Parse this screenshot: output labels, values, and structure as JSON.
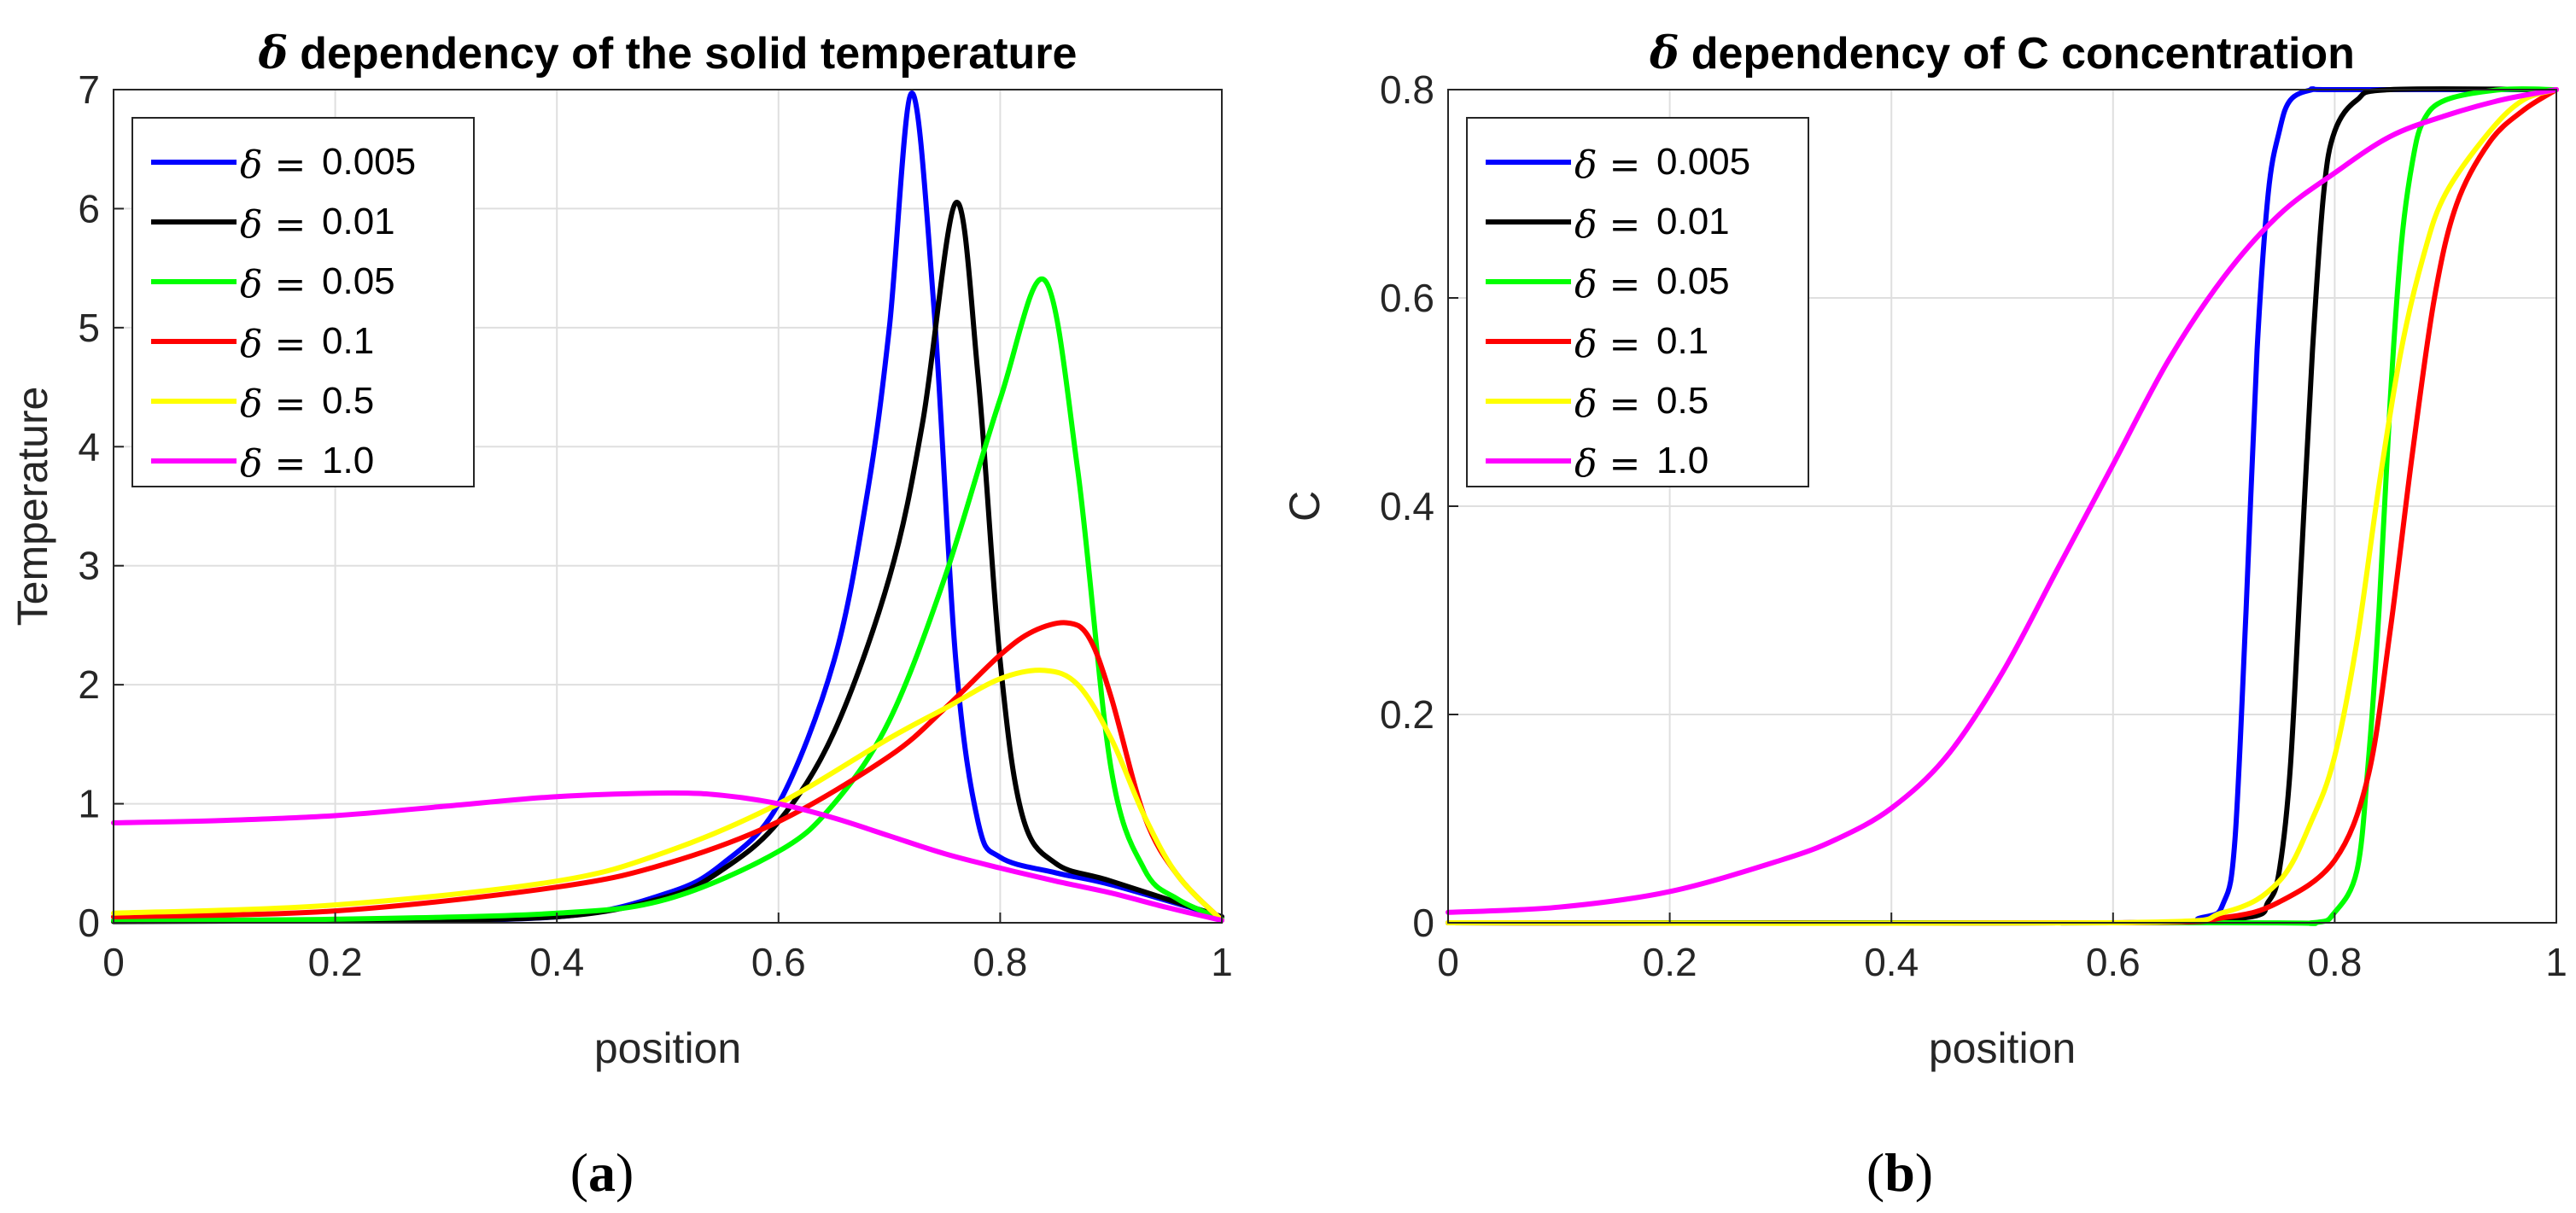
{
  "chart_data": [
    {
      "type": "line",
      "title": "dependency of the solid temperature",
      "title_symbol": "δ",
      "xlabel": "position",
      "ylabel": "Temperature",
      "xlim": [
        0,
        1
      ],
      "ylim": [
        0,
        7
      ],
      "xticks": [
        "0",
        "0.2",
        "0.4",
        "0.6",
        "0.8",
        "1"
      ],
      "yticks": [
        "0",
        "1",
        "2",
        "3",
        "4",
        "5",
        "6",
        "7"
      ],
      "grid": true,
      "legend_position": "top-left",
      "caption": "a",
      "series": [
        {
          "name": "0.005",
          "color": "#0000ff",
          "x": [
            0,
            0.2,
            0.4,
            0.5,
            0.55,
            0.6,
            0.65,
            0.68,
            0.7,
            0.72,
            0.74,
            0.76,
            0.78,
            0.8,
            0.85,
            0.9,
            1.0
          ],
          "y": [
            0.02,
            0.02,
            0.05,
            0.25,
            0.5,
            1.0,
            2.2,
            3.6,
            5.0,
            6.97,
            5.2,
            2.2,
            0.85,
            0.55,
            0.42,
            0.32,
            0.05
          ]
        },
        {
          "name": "0.01",
          "color": "#000000",
          "x": [
            0,
            0.2,
            0.4,
            0.5,
            0.55,
            0.6,
            0.65,
            0.7,
            0.73,
            0.76,
            0.78,
            0.8,
            0.82,
            0.85,
            0.9,
            1.0
          ],
          "y": [
            0.01,
            0.02,
            0.05,
            0.22,
            0.45,
            0.85,
            1.6,
            2.9,
            4.2,
            6.05,
            4.6,
            2.2,
            0.9,
            0.5,
            0.35,
            0.05
          ]
        },
        {
          "name": "0.05",
          "color": "#00ff00",
          "x": [
            0,
            0.2,
            0.4,
            0.5,
            0.6,
            0.65,
            0.7,
            0.75,
            0.8,
            0.84,
            0.87,
            0.9,
            0.93,
            0.96,
            1.0
          ],
          "y": [
            0.02,
            0.03,
            0.08,
            0.2,
            0.6,
            1.0,
            1.7,
            2.9,
            4.4,
            5.4,
            3.8,
            1.3,
            0.45,
            0.2,
            0.03
          ]
        },
        {
          "name": "0.1",
          "color": "#ff0000",
          "x": [
            0,
            0.2,
            0.4,
            0.5,
            0.6,
            0.7,
            0.75,
            0.8,
            0.83,
            0.86,
            0.88,
            0.9,
            0.93,
            0.96,
            1.0
          ],
          "y": [
            0.05,
            0.1,
            0.3,
            0.5,
            0.85,
            1.4,
            1.8,
            2.25,
            2.45,
            2.52,
            2.4,
            1.9,
            0.9,
            0.4,
            0.02
          ]
        },
        {
          "name": "0.5",
          "color": "#ffff00",
          "x": [
            0,
            0.2,
            0.4,
            0.5,
            0.6,
            0.7,
            0.75,
            0.8,
            0.84,
            0.87,
            0.9,
            0.93,
            0.96,
            1.0
          ],
          "y": [
            0.08,
            0.15,
            0.35,
            0.6,
            1.0,
            1.55,
            1.8,
            2.05,
            2.12,
            2.0,
            1.55,
            0.9,
            0.4,
            0.02
          ]
        },
        {
          "name": "1.0",
          "color": "#ff00ff",
          "x": [
            0,
            0.1,
            0.2,
            0.3,
            0.4,
            0.5,
            0.55,
            0.6,
            0.65,
            0.7,
            0.75,
            0.8,
            0.85,
            0.9,
            0.95,
            1.0
          ],
          "y": [
            0.84,
            0.86,
            0.9,
            0.98,
            1.06,
            1.09,
            1.07,
            1.0,
            0.88,
            0.73,
            0.58,
            0.46,
            0.35,
            0.25,
            0.13,
            0.02
          ]
        }
      ]
    },
    {
      "type": "line",
      "title": "dependency of C concentration",
      "title_symbol": "δ",
      "xlabel": "position",
      "ylabel": "C",
      "xlim": [
        0,
        1
      ],
      "ylim": [
        0,
        0.8
      ],
      "xticks": [
        "0",
        "0.2",
        "0.4",
        "0.6",
        "0.8",
        "1"
      ],
      "yticks": [
        "0",
        "0.2",
        "0.4",
        "0.6",
        "0.8"
      ],
      "grid": true,
      "legend_position": "top-left",
      "caption": "b",
      "series": [
        {
          "name": "0.005",
          "color": "#0000ff",
          "x": [
            0,
            0.6,
            0.68,
            0.7,
            0.71,
            0.72,
            0.73,
            0.74,
            0.75,
            0.76,
            0.78,
            0.8,
            1.0
          ],
          "y": [
            0.0,
            0.0,
            0.005,
            0.02,
            0.08,
            0.3,
            0.55,
            0.7,
            0.76,
            0.79,
            0.8,
            0.8,
            0.8
          ]
        },
        {
          "name": "0.01",
          "color": "#000000",
          "x": [
            0,
            0.6,
            0.72,
            0.74,
            0.75,
            0.76,
            0.77,
            0.78,
            0.79,
            0.8,
            0.82,
            0.85,
            1.0
          ],
          "y": [
            0.0,
            0.0,
            0.005,
            0.02,
            0.05,
            0.15,
            0.35,
            0.55,
            0.7,
            0.76,
            0.79,
            0.8,
            0.8
          ]
        },
        {
          "name": "0.05",
          "color": "#00ff00",
          "x": [
            0,
            0.7,
            0.78,
            0.8,
            0.82,
            0.83,
            0.84,
            0.85,
            0.86,
            0.87,
            0.88,
            0.9,
            0.95,
            1.0
          ],
          "y": [
            0.0,
            0.0,
            0.0,
            0.01,
            0.05,
            0.15,
            0.3,
            0.5,
            0.65,
            0.73,
            0.77,
            0.79,
            0.8,
            0.8
          ]
        },
        {
          "name": "0.1",
          "color": "#ff0000",
          "x": [
            0,
            0.6,
            0.7,
            0.75,
            0.8,
            0.83,
            0.85,
            0.87,
            0.89,
            0.91,
            0.94,
            0.97,
            1.0
          ],
          "y": [
            0.0,
            0.0,
            0.005,
            0.02,
            0.06,
            0.14,
            0.28,
            0.45,
            0.6,
            0.69,
            0.75,
            0.78,
            0.8
          ]
        },
        {
          "name": "0.5",
          "color": "#ffff00",
          "x": [
            0,
            0.6,
            0.7,
            0.75,
            0.78,
            0.8,
            0.82,
            0.84,
            0.86,
            0.88,
            0.9,
            0.94,
            0.97,
            1.0
          ],
          "y": [
            0.0,
            0.0,
            0.01,
            0.04,
            0.1,
            0.16,
            0.27,
            0.42,
            0.55,
            0.64,
            0.7,
            0.76,
            0.79,
            0.8
          ]
        },
        {
          "name": "1.0",
          "color": "#ff00ff",
          "x": [
            0,
            0.1,
            0.2,
            0.3,
            0.35,
            0.4,
            0.45,
            0.5,
            0.55,
            0.6,
            0.65,
            0.7,
            0.75,
            0.8,
            0.85,
            0.9,
            0.95,
            1.0
          ],
          "y": [
            0.01,
            0.015,
            0.03,
            0.06,
            0.08,
            0.11,
            0.16,
            0.24,
            0.34,
            0.44,
            0.54,
            0.62,
            0.68,
            0.72,
            0.755,
            0.775,
            0.79,
            0.8
          ]
        }
      ]
    }
  ]
}
